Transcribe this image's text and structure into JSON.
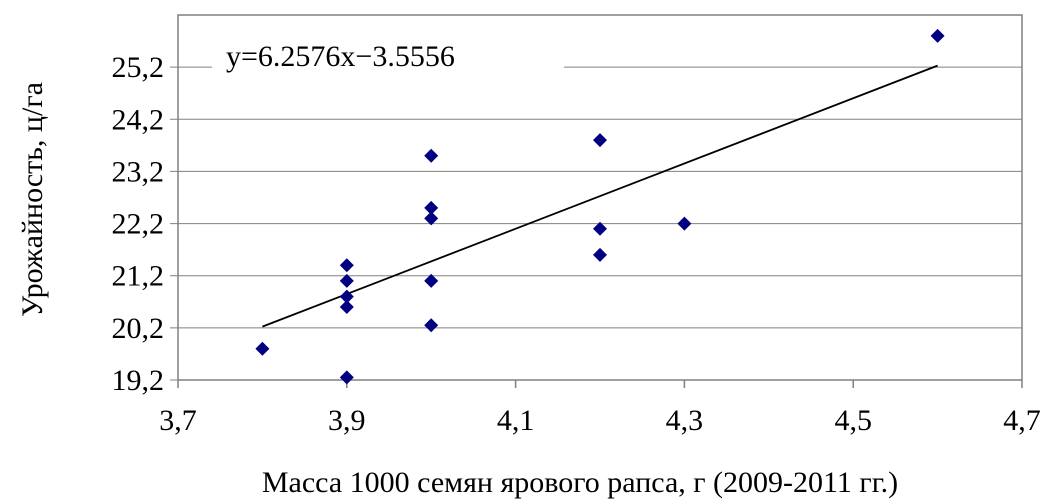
{
  "chart_data": {
    "type": "scatter",
    "title": "",
    "xlabel": "Масса 1000 семян ярового рапса, г (2009-2011 гг.)",
    "ylabel": "Урожайность, ц/га",
    "xlim": [
      3.7,
      4.7
    ],
    "ylim": [
      19.2,
      26.2
    ],
    "x_ticks": [
      "3,7",
      "3,9",
      "4,1",
      "4,3",
      "4,5",
      "4,7"
    ],
    "y_ticks": [
      "19,2",
      "20,2",
      "21,2",
      "22,2",
      "23,2",
      "24,2",
      "25,2"
    ],
    "grid": "horizontal",
    "marker_color": "#000080",
    "points": [
      {
        "x": 3.8,
        "y": 19.8
      },
      {
        "x": 3.9,
        "y": 19.25
      },
      {
        "x": 3.9,
        "y": 20.6
      },
      {
        "x": 3.9,
        "y": 20.8
      },
      {
        "x": 3.9,
        "y": 21.1
      },
      {
        "x": 3.9,
        "y": 21.4
      },
      {
        "x": 4.0,
        "y": 20.25
      },
      {
        "x": 4.0,
        "y": 21.1
      },
      {
        "x": 4.0,
        "y": 22.3
      },
      {
        "x": 4.0,
        "y": 22.5
      },
      {
        "x": 4.0,
        "y": 23.5
      },
      {
        "x": 4.2,
        "y": 21.6
      },
      {
        "x": 4.2,
        "y": 22.1
      },
      {
        "x": 4.2,
        "y": 23.8
      },
      {
        "x": 4.3,
        "y": 22.2
      },
      {
        "x": 4.6,
        "y": 25.8
      }
    ],
    "trendline": {
      "equation": "y=6.2576x−3.5556",
      "slope": 6.2576,
      "intercept": -3.5556,
      "x_range": [
        3.8,
        4.6
      ]
    }
  }
}
